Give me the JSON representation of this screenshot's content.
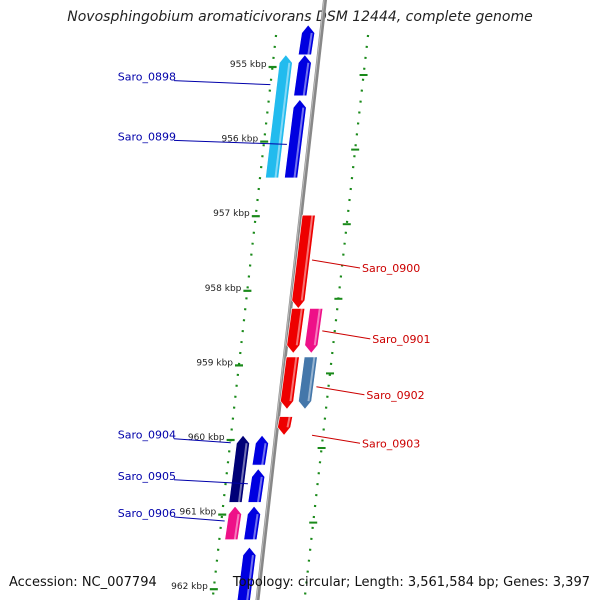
{
  "header": {
    "title": "Novosphingobium aromaticivorans DSM 12444, complete genome"
  },
  "footer": {
    "accession": "Accession: NC_007794",
    "summary": "Topology: circular; Length: 3,561,584 bp; Genes: 3,397"
  },
  "axis": {
    "ticks": [
      {
        "kbp": 955,
        "label": "955 kbp"
      },
      {
        "kbp": 956,
        "label": "956 kbp"
      },
      {
        "kbp": 957,
        "label": "957 kbp"
      },
      {
        "kbp": 958,
        "label": "958 kbp"
      },
      {
        "kbp": 959,
        "label": "959 kbp"
      },
      {
        "kbp": 960,
        "label": "960 kbp"
      },
      {
        "kbp": 961,
        "label": "961 kbp"
      },
      {
        "kbp": 962,
        "label": "962 kbp"
      }
    ]
  },
  "genes": [
    {
      "id": "g-top",
      "strand": "forward",
      "lane": 1,
      "start": 954.45,
      "end": 954.85,
      "color": "#0000e0",
      "label": ""
    },
    {
      "id": "g-fwd-a",
      "strand": "forward",
      "lane": 1,
      "start": 954.85,
      "end": 955.4,
      "color": "#0000e0",
      "label": ""
    },
    {
      "id": "g-0898",
      "strand": "forward",
      "lane": 2,
      "start": 954.85,
      "end": 956.5,
      "color": "#22bbee",
      "label": "Saro_0898",
      "label_color": "#0000aa"
    },
    {
      "id": "g-0899",
      "strand": "forward",
      "lane": 1,
      "start": 955.45,
      "end": 956.5,
      "color": "#0000e0",
      "label": "Saro_0899",
      "label_color": "#0000aa"
    },
    {
      "id": "g-0900",
      "strand": "reverse",
      "lane": 1,
      "start": 957.0,
      "end": 958.25,
      "color": "#ee0000",
      "label": "Saro_0900",
      "label_color": "#cc0000"
    },
    {
      "id": "g-0901",
      "strand": "reverse",
      "lane": 1,
      "start": 958.25,
      "end": 958.85,
      "color": "#ee0000",
      "label": "Saro_0901",
      "label_color": "#cc0000"
    },
    {
      "id": "g-0901b",
      "strand": "reverse",
      "lane": 2,
      "start": 958.25,
      "end": 958.85,
      "color": "#ee1188",
      "label": "",
      "label_color": "#cc0000"
    },
    {
      "id": "g-0902",
      "strand": "reverse",
      "lane": 1,
      "start": 958.9,
      "end": 959.6,
      "color": "#ee0000",
      "label": "",
      "label_color": "#cc0000"
    },
    {
      "id": "g-0902b",
      "strand": "reverse",
      "lane": 2,
      "start": 958.9,
      "end": 959.6,
      "color": "#4477aa",
      "label": "Saro_0902",
      "label_color": "#cc0000"
    },
    {
      "id": "g-0903",
      "strand": "reverse",
      "lane": 1,
      "start": 959.7,
      "end": 959.95,
      "color": "#ee0000",
      "label": "Saro_0903",
      "label_color": "#cc0000"
    },
    {
      "id": "g-0904",
      "strand": "forward",
      "lane": 2,
      "start": 959.95,
      "end": 960.85,
      "color": "#000077",
      "label": "Saro_0904",
      "label_color": "#0000aa"
    },
    {
      "id": "g-0905",
      "strand": "forward",
      "lane": 1,
      "start": 959.95,
      "end": 960.35,
      "color": "#0000e0",
      "label": "",
      "label_color": "#0000aa"
    },
    {
      "id": "g-0905b",
      "strand": "forward",
      "lane": 1,
      "start": 960.4,
      "end": 960.85,
      "color": "#0000e0",
      "label": "Saro_0905",
      "label_color": "#0000aa"
    },
    {
      "id": "g-0906",
      "strand": "forward",
      "lane": 2,
      "start": 960.9,
      "end": 961.35,
      "color": "#ee1188",
      "label": "Saro_0906",
      "label_color": "#0000aa"
    },
    {
      "id": "g-0906b",
      "strand": "forward",
      "lane": 1,
      "start": 960.9,
      "end": 961.35,
      "color": "#0000e0",
      "label": "",
      "label_color": "#0000aa"
    },
    {
      "id": "g-bottom",
      "strand": "forward",
      "lane": 1,
      "start": 961.45,
      "end": 962.4,
      "color": "#0000e0",
      "label": "",
      "label_color": "#0000aa"
    }
  ]
}
